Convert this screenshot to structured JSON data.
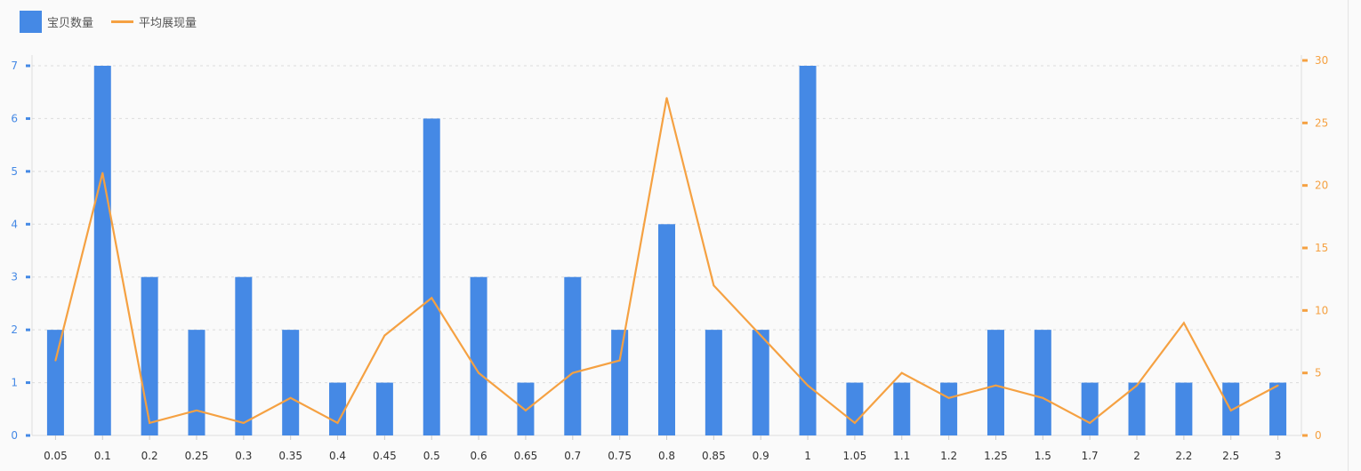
{
  "chart_data": {
    "type": "bar+line",
    "categories": [
      "0.05",
      "0.1",
      "0.2",
      "0.25",
      "0.3",
      "0.35",
      "0.4",
      "0.45",
      "0.5",
      "0.6",
      "0.65",
      "0.7",
      "0.75",
      "0.8",
      "0.85",
      "0.9",
      "1",
      "1.05",
      "1.1",
      "1.2",
      "1.25",
      "1.5",
      "1.7",
      "2",
      "2.2",
      "2.5",
      "3"
    ],
    "series": [
      {
        "name": "宝贝数量",
        "type": "bar",
        "axis": "left",
        "color": "#4589e5",
        "values": [
          2,
          7,
          3,
          2,
          3,
          2,
          1,
          1,
          6,
          3,
          1,
          3,
          2,
          4,
          2,
          2,
          7,
          1,
          1,
          1,
          2,
          2,
          1,
          1,
          1,
          1,
          1
        ]
      },
      {
        "name": "平均展现量",
        "type": "line",
        "axis": "right",
        "color": "#f5a142",
        "values": [
          6,
          21,
          1,
          2,
          1,
          3,
          1,
          8,
          11,
          5,
          2,
          5,
          6,
          27,
          12,
          8,
          4,
          1,
          5,
          3,
          4,
          3,
          1,
          4,
          9,
          2,
          4
        ]
      }
    ],
    "left_axis": {
      "min": 0,
      "max": 7,
      "ticks": [
        "0",
        "1",
        "2",
        "3",
        "4",
        "5",
        "6",
        "7"
      ],
      "color": "#4589e5"
    },
    "right_axis": {
      "min": 0,
      "max": 30,
      "ticks": [
        "0",
        "5",
        "10",
        "15",
        "20",
        "25",
        "30"
      ],
      "color": "#f5a142"
    },
    "grid": true,
    "legend": "top-left"
  }
}
